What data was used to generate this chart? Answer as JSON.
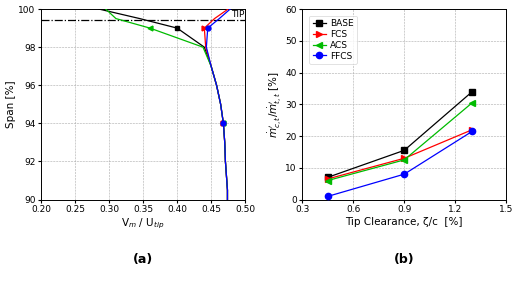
{
  "plot_a": {
    "xlabel": "V$_m$ / U$_{tip}$",
    "ylabel": "Span [%]",
    "xlim": [
      0.2,
      0.5
    ],
    "ylim": [
      90,
      100
    ],
    "xticks": [
      0.2,
      0.25,
      0.3,
      0.35,
      0.4,
      0.45,
      0.5
    ],
    "yticks": [
      90,
      92,
      94,
      96,
      98,
      100
    ],
    "tip_line_y": 99.4,
    "label_a": "(a)",
    "curves": {
      "BASE": {
        "color": "#000000",
        "marker": "s",
        "markerindices": [
          6,
          11
        ],
        "x": [
          0.474,
          0.474,
          0.473,
          0.472,
          0.471,
          0.47,
          0.468,
          0.464,
          0.458,
          0.45,
          0.44,
          0.4,
          0.345,
          0.285
        ],
        "y": [
          90.0,
          90.5,
          91.0,
          91.5,
          92.0,
          93.0,
          94.0,
          95.0,
          96.0,
          97.0,
          98.0,
          99.0,
          99.5,
          100.0
        ]
      },
      "FCS": {
        "color": "#ff0000",
        "marker": ">",
        "markerindices": [
          6,
          11
        ],
        "x": [
          0.474,
          0.474,
          0.473,
          0.472,
          0.471,
          0.47,
          0.468,
          0.464,
          0.458,
          0.45,
          0.442,
          0.44,
          0.455,
          0.475
        ],
        "y": [
          90.0,
          90.5,
          91.0,
          91.5,
          92.0,
          93.0,
          94.0,
          95.0,
          96.0,
          97.0,
          98.0,
          99.0,
          99.5,
          100.0
        ]
      },
      "ACS": {
        "color": "#00bb00",
        "marker": "<",
        "markerindices": [
          6,
          11
        ],
        "x": [
          0.474,
          0.474,
          0.473,
          0.472,
          0.471,
          0.47,
          0.468,
          0.464,
          0.458,
          0.45,
          0.438,
          0.36,
          0.31,
          0.295
        ],
        "y": [
          90.0,
          90.5,
          91.0,
          91.5,
          92.0,
          93.0,
          94.0,
          95.0,
          96.0,
          97.0,
          98.0,
          99.0,
          99.5,
          100.0
        ]
      },
      "FFCS": {
        "color": "#0000ff",
        "marker": "o",
        "markerindices": [
          6,
          11
        ],
        "x": [
          0.474,
          0.474,
          0.473,
          0.472,
          0.471,
          0.47,
          0.468,
          0.464,
          0.458,
          0.45,
          0.443,
          0.445,
          0.462,
          0.478
        ],
        "y": [
          90.0,
          90.5,
          91.0,
          91.5,
          92.0,
          93.0,
          94.0,
          95.0,
          96.0,
          97.0,
          98.0,
          99.0,
          99.5,
          100.0
        ]
      }
    }
  },
  "plot_b": {
    "xlabel": "Tip Clearance, ζ/c  [%]",
    "ylabel": "$\\dot{m}^{\\prime}_{c,t}/\\dot{m}^{\\prime}_{t,t}$ [%]",
    "xlim": [
      0.3,
      1.5
    ],
    "ylim": [
      0,
      60
    ],
    "xticks": [
      0.3,
      0.6,
      0.9,
      1.2,
      1.5
    ],
    "yticks": [
      0,
      10,
      20,
      30,
      40,
      50,
      60
    ],
    "label_b": "(b)",
    "curves": {
      "BASE": {
        "color": "#000000",
        "marker": "s",
        "x": [
          0.45,
          0.9,
          1.3
        ],
        "y": [
          7.0,
          15.5,
          34.0
        ]
      },
      "FCS": {
        "color": "#ff0000",
        "marker": ">",
        "x": [
          0.45,
          0.9,
          1.3
        ],
        "y": [
          6.5,
          13.0,
          22.0
        ]
      },
      "ACS": {
        "color": "#00bb00",
        "marker": "<",
        "x": [
          0.45,
          0.9,
          1.3
        ],
        "y": [
          6.0,
          12.5,
          30.5
        ]
      },
      "FFCS": {
        "color": "#0000ff",
        "marker": "o",
        "x": [
          0.45,
          0.9,
          1.3
        ],
        "y": [
          1.0,
          8.0,
          21.5
        ]
      }
    }
  },
  "bg_color": "#ffffff",
  "grid_color": "#aaaaaa",
  "font_size_tick": 6.5,
  "font_size_label": 7.5,
  "font_size_legend": 6.5,
  "font_size_caption": 9
}
